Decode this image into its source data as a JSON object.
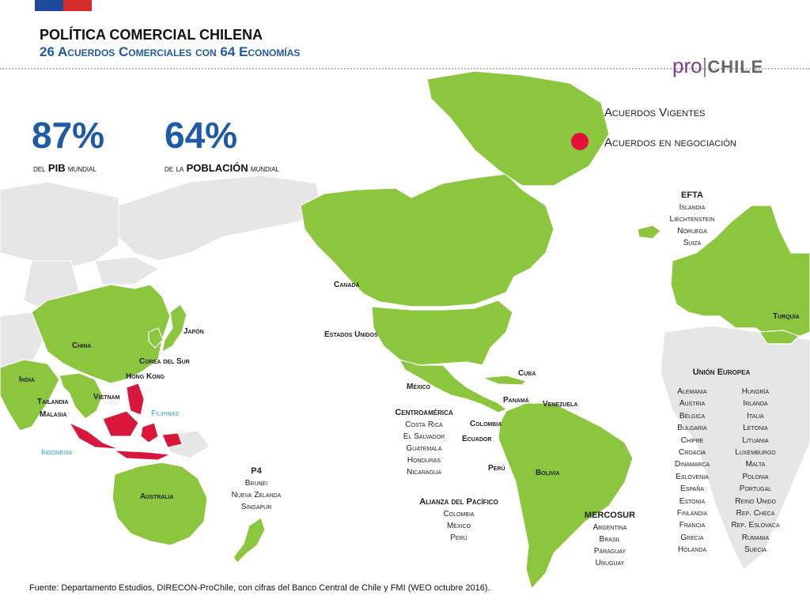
{
  "header": {
    "title": "POLÍTICA COMERCIAL CHILENA",
    "subtitle": "26 Acuerdos Comerciales con 64 Economías",
    "logo_pro": "pro",
    "logo_sep": "|",
    "logo_chile": "CHILE"
  },
  "stats": [
    {
      "value": "87%",
      "label_pre": "del",
      "label_bold": "PIB",
      "label_post": "mundial"
    },
    {
      "value": "64%",
      "label_pre": "de la",
      "label_bold": "POBLACIÓN",
      "label_post": "mundial"
    }
  ],
  "legend": {
    "items": [
      {
        "label": "Acuerdos Vigentes",
        "color": "#8cc63f"
      },
      {
        "label": "Acuerdos en negociación",
        "color": "#e3113a"
      }
    ]
  },
  "colors": {
    "in_force": "#8cc63f",
    "negotiating": "#d9173c",
    "other_land": "#e6e6e6",
    "accent_blue": "#1e5aa8"
  },
  "labels": {
    "canada": "Canadá",
    "usa": "Estados Unidos",
    "japan": "Japón",
    "china": "China",
    "korea": "Corea del Sur",
    "hongkong": "Hong Kong",
    "india": "India",
    "vietnam": "Vietnam",
    "thailand": "Tailandia",
    "malaysia": "Malasia",
    "philippines": "Filipinas",
    "indonesia": "Indonesia",
    "australia": "Australia",
    "mexico": "México",
    "cuba": "Cuba",
    "panama": "Panamá",
    "venezuela": "Venezuela",
    "colombia": "Colombia",
    "ecuador": "Ecuador",
    "peru": "Perú",
    "bolivia": "Bolivia",
    "turkey": "Turquía"
  },
  "blocks": {
    "efta": {
      "title": "EFTA",
      "members": [
        "Islandia",
        "Liechtenstein",
        "Noruega",
        "Suiza"
      ]
    },
    "centroamerica": {
      "title": "Centroamérica",
      "members": [
        "Costa Rica",
        "El Salvador",
        "Guatemala",
        "Honduras",
        "Nicaragua"
      ]
    },
    "p4": {
      "title": "P4",
      "members": [
        "Brunei",
        "Nueva Zelanda",
        "Singapur"
      ]
    },
    "alianza": {
      "title": "Alianza del Pacífico",
      "members": [
        "Colombia",
        "México",
        "Perú"
      ]
    },
    "mercosur": {
      "title": "MERCOSUR",
      "members": [
        "Argentina",
        "Brasil",
        "Paraguay",
        "Uruguay"
      ]
    },
    "eu": {
      "title": "Unión Europea",
      "col1": [
        "Alemania",
        "Austria",
        "Bélgica",
        "Bulgaria",
        "Chipre",
        "Croacia",
        "Dinamarca",
        "Eslovenia",
        "España",
        "Estonia",
        "Finlandia",
        "Francia",
        "Grecia",
        "Holanda"
      ],
      "col2": [
        "Hungría",
        "Irlanda",
        "Italia",
        "Letonia",
        "Lituania",
        "Luxemburgo",
        "Malta",
        "Polonia",
        "Portugal",
        "Reino Unido",
        "Rep. Checa",
        "Rep. Eslovaca",
        "Rumania",
        "Suecia"
      ]
    }
  },
  "source": "Fuente: Departamento Estudios, DIRECON-ProChile, con cifras del Banco Central de Chile y FMI (WEO octubre 2016)."
}
